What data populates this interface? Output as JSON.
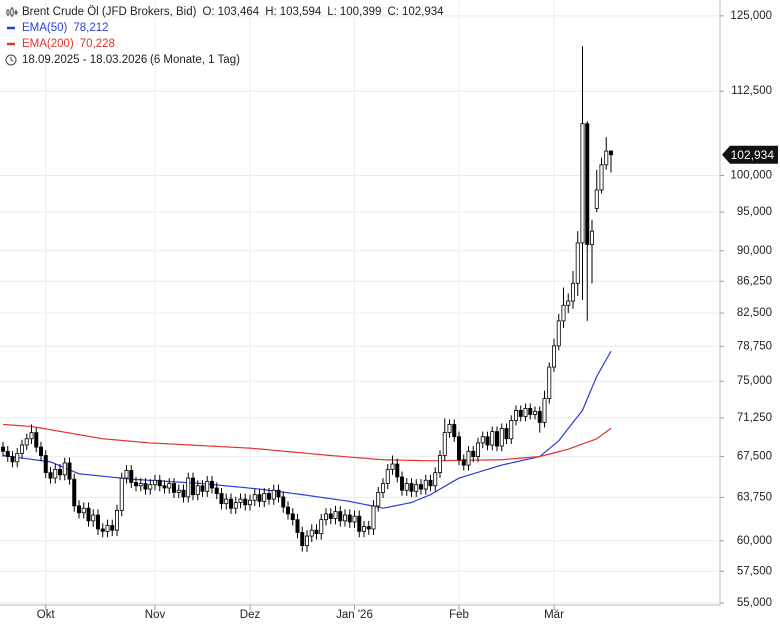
{
  "chart_data": {
    "type": "candlestick",
    "title": "Brent Crude Öl (JFD Brokers, Bid)",
    "ohlc_labels": [
      {
        "key": "O:",
        "label": "103,464"
      },
      {
        "key": "H:",
        "label": "103,594"
      },
      {
        "key": "L:",
        "label": "100,399"
      },
      {
        "key": "C:",
        "label": "102,934"
      }
    ],
    "date_range": "18.09.2025 - 18.03.2026",
    "period": "(6 Monate, 1 Tag)",
    "last_label": "102,934",
    "log_scale": true,
    "grid": true,
    "up_color": "#ffffff",
    "down_color": "#000000",
    "ylim": [
      54.85,
      127.8
    ],
    "yticks": [
      {
        "value": 55,
        "label": "55,000"
      },
      {
        "value": 57.5,
        "label": "57,500"
      },
      {
        "value": 60,
        "label": "60,000"
      },
      {
        "value": 63.75,
        "label": "63,750"
      },
      {
        "value": 67.5,
        "label": "67,500"
      },
      {
        "value": 71.25,
        "label": "71,250"
      },
      {
        "value": 75,
        "label": "75,000"
      },
      {
        "value": 78.75,
        "label": "78,750"
      },
      {
        "value": 82.5,
        "label": "82,500"
      },
      {
        "value": 86.25,
        "label": "86,250"
      },
      {
        "value": 90,
        "label": "90,000"
      },
      {
        "value": 95,
        "label": "95,000"
      },
      {
        "value": 100,
        "label": "100,000"
      },
      {
        "value": 112.5,
        "label": "112,500"
      },
      {
        "value": 125,
        "label": "125,000"
      }
    ],
    "categories": [
      null,
      null,
      null,
      null,
      null,
      null,
      null,
      null,
      null,
      "Okt",
      null,
      null,
      null,
      null,
      null,
      null,
      null,
      null,
      null,
      null,
      null,
      null,
      null,
      null,
      null,
      null,
      null,
      null,
      null,
      null,
      null,
      null,
      "Nov",
      null,
      null,
      null,
      null,
      null,
      null,
      null,
      null,
      null,
      null,
      null,
      null,
      null,
      null,
      null,
      null,
      null,
      null,
      null,
      "Dez",
      null,
      null,
      null,
      null,
      null,
      null,
      null,
      null,
      null,
      null,
      null,
      null,
      null,
      null,
      null,
      null,
      null,
      null,
      null,
      null,
      null,
      "Jan '26",
      null,
      null,
      null,
      null,
      null,
      null,
      null,
      null,
      null,
      null,
      null,
      null,
      null,
      null,
      null,
      null,
      null,
      null,
      null,
      null,
      null,
      "Feb",
      null,
      null,
      null,
      null,
      null,
      null,
      null,
      null,
      null,
      null,
      null,
      null,
      null,
      null,
      null,
      null,
      null,
      null,
      null,
      "Mär",
      null,
      null,
      null,
      null,
      null,
      null,
      null,
      null,
      null,
      null,
      null,
      null
    ],
    "open": [
      68.4,
      68.0,
      67.5,
      67.0,
      67.8,
      68.6,
      69.2,
      69.8,
      68.4,
      67.6,
      66.0,
      65.5,
      66.3,
      65.8,
      66.9,
      65.4,
      63.0,
      62.4,
      62.8,
      61.7,
      62.2,
      61.0,
      60.8,
      61.3,
      60.9,
      62.6,
      65.5,
      66.2,
      65.1,
      64.8,
      65.0,
      64.5,
      64.9,
      65.3,
      64.8,
      64.6,
      65.0,
      64.2,
      64.4,
      63.8,
      65.5,
      64.0,
      64.8,
      64.3,
      65.2,
      64.6,
      64.1,
      63.2,
      63.6,
      62.8,
      63.3,
      63.6,
      63.1,
      63.5,
      64.0,
      63.4,
      64.1,
      63.6,
      64.4,
      63.8,
      62.9,
      62.3,
      61.8,
      60.7,
      59.6,
      60.4,
      60.9,
      60.6,
      61.8,
      62.3,
      61.9,
      62.5,
      61.7,
      62.2,
      61.6,
      62.1,
      60.8,
      61.2,
      61.0,
      63.0,
      64.2,
      65.0,
      66.3,
      66.8,
      65.6,
      64.4,
      65.0,
      64.3,
      64.9,
      64.5,
      65.3,
      64.8,
      66.0,
      67.6,
      69.8,
      70.6,
      69.4,
      67.2,
      66.7,
      68.0,
      67.5,
      68.8,
      69.4,
      68.6,
      69.9,
      68.5,
      70.2,
      69.2,
      71.0,
      72.0,
      71.4,
      72.2,
      71.6,
      71.9,
      70.8,
      73.2,
      76.5,
      78.8,
      81.6,
      83.4,
      83.9,
      86.0,
      91.0,
      107.5,
      90.8,
      95.5,
      98.0,
      101.5,
      103.464
    ],
    "high": [
      68.9,
      68.5,
      68.0,
      68.3,
      69.1,
      69.7,
      70.6,
      70.3,
      68.9,
      68.1,
      66.5,
      66.8,
      66.8,
      67.4,
      67.4,
      65.9,
      63.5,
      63.3,
      63.3,
      62.7,
      62.7,
      61.5,
      61.8,
      61.8,
      63.1,
      66.0,
      66.7,
      66.7,
      65.6,
      65.5,
      65.5,
      65.4,
      65.8,
      65.8,
      65.3,
      65.5,
      65.5,
      64.9,
      64.9,
      66.0,
      66.0,
      65.3,
      65.3,
      65.7,
      65.7,
      65.1,
      64.6,
      64.1,
      64.1,
      63.8,
      64.1,
      64.1,
      64.0,
      64.5,
      64.5,
      64.6,
      64.6,
      64.9,
      64.9,
      64.3,
      63.4,
      62.8,
      62.3,
      61.2,
      60.9,
      61.4,
      61.4,
      62.3,
      62.8,
      62.8,
      63.0,
      63.0,
      62.7,
      62.7,
      62.6,
      62.6,
      61.7,
      61.7,
      63.5,
      64.7,
      65.5,
      66.8,
      67.6,
      67.3,
      66.1,
      65.5,
      65.5,
      65.4,
      65.4,
      65.8,
      65.8,
      66.5,
      68.1,
      71.2,
      71.1,
      71.1,
      69.9,
      67.7,
      68.5,
      68.5,
      69.3,
      69.9,
      69.9,
      70.4,
      70.4,
      70.7,
      70.7,
      71.5,
      72.5,
      72.5,
      72.7,
      72.7,
      72.4,
      72.4,
      74.0,
      77.0,
      79.6,
      82.4,
      85.5,
      84.8,
      87.5,
      92.5,
      119.8,
      107.9,
      94.0,
      100.8,
      102.5,
      105.5,
      103.594
    ],
    "low": [
      67.5,
      67.0,
      66.5,
      66.5,
      67.3,
      68.1,
      68.7,
      67.9,
      67.1,
      65.5,
      65.0,
      65.0,
      65.3,
      65.3,
      64.9,
      62.5,
      61.9,
      61.9,
      61.2,
      61.2,
      60.5,
      60.3,
      60.3,
      60.4,
      60.4,
      62.1,
      65.0,
      64.6,
      64.3,
      64.3,
      64.0,
      64.0,
      64.4,
      64.3,
      64.1,
      64.1,
      63.7,
      63.7,
      63.3,
      63.3,
      63.5,
      63.5,
      63.8,
      63.8,
      64.1,
      63.6,
      62.7,
      62.7,
      62.3,
      62.3,
      62.8,
      62.6,
      62.6,
      63.0,
      62.9,
      62.9,
      63.1,
      63.1,
      63.3,
      62.4,
      61.8,
      61.3,
      60.2,
      59.1,
      59.1,
      59.9,
      60.1,
      60.1,
      61.3,
      61.4,
      61.4,
      61.2,
      61.2,
      61.1,
      61.1,
      60.3,
      60.3,
      60.5,
      60.5,
      62.5,
      63.7,
      64.5,
      65.8,
      65.1,
      63.9,
      63.9,
      63.8,
      63.8,
      64.0,
      64.0,
      64.3,
      64.3,
      65.5,
      67.1,
      69.3,
      68.9,
      66.7,
      66.2,
      66.2,
      67.0,
      67.0,
      68.3,
      68.1,
      68.1,
      68.0,
      68.0,
      68.7,
      68.7,
      70.5,
      70.9,
      70.9,
      71.1,
      71.1,
      69.8,
      70.3,
      72.7,
      76.0,
      78.3,
      80.8,
      82.5,
      83.0,
      84.5,
      84.0,
      81.6,
      86.0,
      95.0,
      97.5,
      100.8,
      100.399
    ],
    "close": [
      68.0,
      67.5,
      67.0,
      67.8,
      68.6,
      69.2,
      69.8,
      68.4,
      67.6,
      66.0,
      65.5,
      66.3,
      65.8,
      66.9,
      65.4,
      63.0,
      62.4,
      62.8,
      61.7,
      62.2,
      61.0,
      60.8,
      61.3,
      60.9,
      62.6,
      65.5,
      66.2,
      65.1,
      64.8,
      65.0,
      64.5,
      64.9,
      65.3,
      64.8,
      64.6,
      65.0,
      64.2,
      64.4,
      63.8,
      65.5,
      64.0,
      64.8,
      64.3,
      65.2,
      64.6,
      64.1,
      63.2,
      63.6,
      62.8,
      63.3,
      63.6,
      63.1,
      63.5,
      64.0,
      63.4,
      64.1,
      63.6,
      64.4,
      63.8,
      62.9,
      62.3,
      61.8,
      60.7,
      59.6,
      60.4,
      60.9,
      60.6,
      61.8,
      62.3,
      61.9,
      62.5,
      61.7,
      62.2,
      61.6,
      62.1,
      60.8,
      61.2,
      61.0,
      63.0,
      64.2,
      65.0,
      66.3,
      66.8,
      65.6,
      64.4,
      65.0,
      64.3,
      64.9,
      64.5,
      65.3,
      64.8,
      66.0,
      67.6,
      69.8,
      70.6,
      69.4,
      67.2,
      66.7,
      68.0,
      67.5,
      68.8,
      69.4,
      68.6,
      69.9,
      68.5,
      70.2,
      69.2,
      71.0,
      72.0,
      71.4,
      72.2,
      71.6,
      71.9,
      70.8,
      73.2,
      76.5,
      78.8,
      81.6,
      83.4,
      83.9,
      86.0,
      91.0,
      107.5,
      90.8,
      92.5,
      98.0,
      101.5,
      103.464,
      102.934
    ],
    "series": [
      {
        "name": "EMA(50)",
        "color": "#2b3fd6",
        "value_label": "78,212",
        "values": [
          67.6,
          67.54,
          67.48,
          67.42,
          67.36,
          67.3,
          67.24,
          67.18,
          67.12,
          67.06,
          67.0,
          66.82,
          66.63,
          66.45,
          66.27,
          66.08,
          65.9,
          65.85,
          65.81,
          65.76,
          65.72,
          65.67,
          65.63,
          65.58,
          65.54,
          65.49,
          65.45,
          65.4,
          65.37,
          65.35,
          65.32,
          65.29,
          65.27,
          65.24,
          65.21,
          65.19,
          65.16,
          65.13,
          65.11,
          65.08,
          65.05,
          65.03,
          65.0,
          64.96,
          64.92,
          64.88,
          64.83,
          64.79,
          64.75,
          64.71,
          64.67,
          64.63,
          64.58,
          64.54,
          64.5,
          64.44,
          64.39,
          64.33,
          64.28,
          64.22,
          64.17,
          64.11,
          64.06,
          64.0,
          63.94,
          63.88,
          63.82,
          63.76,
          63.7,
          63.64,
          63.58,
          63.52,
          63.46,
          63.4,
          63.31,
          63.23,
          63.14,
          63.06,
          62.97,
          62.89,
          62.8,
          62.88,
          62.97,
          63.05,
          63.13,
          63.22,
          63.3,
          63.48,
          63.65,
          63.83,
          64.0,
          64.25,
          64.5,
          64.75,
          65.0,
          65.25,
          65.5,
          65.63,
          65.77,
          65.9,
          66.03,
          66.17,
          66.3,
          66.43,
          66.57,
          66.7,
          66.8,
          66.9,
          67.0,
          67.1,
          67.2,
          67.3,
          67.4,
          67.5,
          67.88,
          68.25,
          68.63,
          69.0,
          69.6,
          70.2,
          70.8,
          71.4,
          72.0,
          73.17,
          74.33,
          75.5,
          76.4,
          77.3,
          78.212
        ]
      },
      {
        "name": "EMA(200)",
        "color": "#e0342c",
        "value_label": "70,228",
        "values": [
          70.6,
          70.57,
          70.53,
          70.5,
          70.47,
          70.43,
          70.4,
          70.32,
          70.24,
          70.16,
          70.08,
          70.0,
          69.92,
          69.84,
          69.76,
          69.68,
          69.6,
          69.52,
          69.44,
          69.36,
          69.28,
          69.2,
          69.16,
          69.12,
          69.08,
          69.04,
          69.0,
          68.96,
          68.92,
          68.88,
          68.84,
          68.8,
          68.78,
          68.75,
          68.73,
          68.7,
          68.68,
          68.66,
          68.63,
          68.61,
          68.59,
          68.56,
          68.54,
          68.51,
          68.49,
          68.47,
          68.44,
          68.42,
          68.39,
          68.37,
          68.35,
          68.32,
          68.3,
          68.26,
          68.22,
          68.18,
          68.14,
          68.09,
          68.05,
          68.01,
          67.97,
          67.93,
          67.89,
          67.85,
          67.81,
          67.76,
          67.72,
          67.68,
          67.64,
          67.6,
          67.56,
          67.53,
          67.49,
          67.45,
          67.42,
          67.38,
          67.35,
          67.31,
          67.27,
          67.24,
          67.2,
          67.19,
          67.18,
          67.17,
          67.16,
          67.15,
          67.14,
          67.13,
          67.12,
          67.11,
          67.1,
          67.11,
          67.11,
          67.12,
          67.13,
          67.13,
          67.14,
          67.15,
          67.15,
          67.16,
          67.17,
          67.17,
          67.18,
          67.19,
          67.19,
          67.2,
          67.24,
          67.28,
          67.31,
          67.35,
          67.39,
          67.43,
          67.46,
          67.5,
          67.62,
          67.73,
          67.85,
          67.97,
          68.08,
          68.2,
          68.37,
          68.53,
          68.7,
          68.87,
          69.03,
          69.2,
          69.54,
          69.88,
          70.228
        ]
      }
    ]
  }
}
